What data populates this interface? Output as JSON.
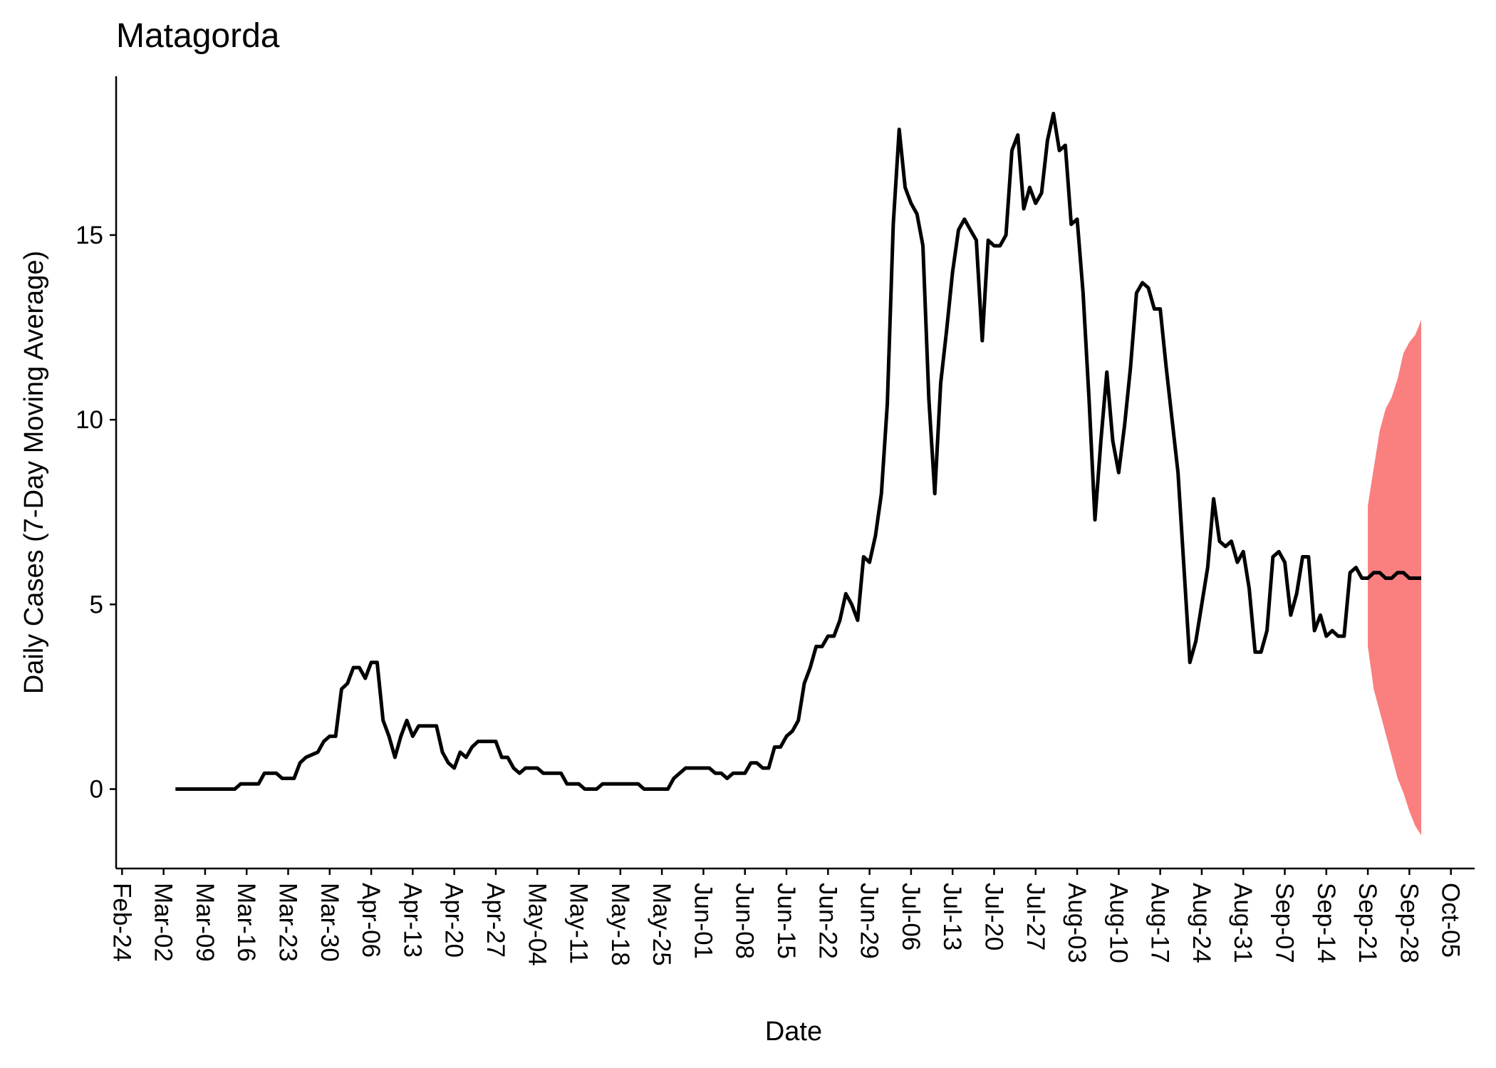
{
  "chart_data": {
    "type": "line",
    "title": "Matagorda",
    "x_label": "Date",
    "y_label": "Daily Cases (7-Day Moving Average)",
    "xlim": [
      "Feb-23",
      "Oct-09"
    ],
    "xticks": [
      "Feb-24",
      "Mar-02",
      "Mar-09",
      "Mar-16",
      "Mar-23",
      "Mar-30",
      "Apr-06",
      "Apr-13",
      "Apr-20",
      "Apr-27",
      "May-04",
      "May-11",
      "May-18",
      "May-25",
      "Jun-01",
      "Jun-08",
      "Jun-15",
      "Jun-22",
      "Jun-29",
      "Jul-06",
      "Jul-13",
      "Jul-20",
      "Jul-27",
      "Aug-03",
      "Aug-10",
      "Aug-17",
      "Aug-24",
      "Aug-31",
      "Sep-07",
      "Sep-14",
      "Sep-21",
      "Sep-28",
      "Oct-05"
    ],
    "ylim": [
      -2.15,
      19.3
    ],
    "yticks": [
      0,
      5,
      10,
      15
    ],
    "color": "#000000",
    "x": [
      "Mar-04",
      "Mar-14",
      "Mar-15",
      "Mar-18",
      "Mar-19",
      "Mar-21",
      "Mar-22",
      "Mar-24",
      "Mar-25",
      "Mar-26",
      "Mar-28",
      "Mar-29",
      "Mar-30",
      "Mar-31",
      "Apr-01",
      "Apr-02",
      "Apr-03",
      "Apr-04",
      "Apr-05",
      "Apr-06",
      "Apr-07",
      "Apr-08",
      "Apr-09",
      "Apr-10",
      "Apr-11",
      "Apr-12",
      "Apr-13",
      "Apr-14",
      "Apr-17",
      "Apr-18",
      "Apr-19",
      "Apr-20",
      "Apr-21",
      "Apr-22",
      "Apr-23",
      "Apr-24",
      "Apr-27",
      "Apr-28",
      "Apr-29",
      "Apr-30",
      "May-01",
      "May-02",
      "May-04",
      "May-05",
      "May-08",
      "May-09",
      "May-11",
      "May-12",
      "May-14",
      "May-15",
      "May-21",
      "May-22",
      "May-26",
      "May-27",
      "May-29",
      "Jun-02",
      "Jun-03",
      "Jun-04",
      "Jun-05",
      "Jun-06",
      "Jun-07",
      "Jun-08",
      "Jun-09",
      "Jun-10",
      "Jun-11",
      "Jun-12",
      "Jun-13",
      "Jun-14",
      "Jun-15",
      "Jun-16",
      "Jun-17",
      "Jun-18",
      "Jun-19",
      "Jun-20",
      "Jun-21",
      "Jun-22",
      "Jun-23",
      "Jun-24",
      "Jun-25",
      "Jun-26",
      "Jun-27",
      "Jun-28",
      "Jun-29",
      "Jun-30",
      "Jul-01",
      "Jul-02",
      "Jul-03",
      "Jul-04",
      "Jul-05",
      "Jul-06",
      "Jul-07",
      "Jul-08",
      "Jul-09",
      "Jul-10",
      "Jul-11",
      "Jul-12",
      "Jul-13",
      "Jul-14",
      "Jul-15",
      "Jul-16",
      "Jul-17",
      "Jul-18",
      "Jul-19",
      "Jul-20",
      "Jul-21",
      "Jul-22",
      "Jul-23",
      "Jul-24",
      "Jul-25",
      "Jul-26",
      "Jul-27",
      "Jul-28",
      "Jul-29",
      "Jul-30",
      "Jul-31",
      "Aug-01",
      "Aug-02",
      "Aug-03",
      "Aug-04",
      "Aug-05",
      "Aug-06",
      "Aug-07",
      "Aug-08",
      "Aug-09",
      "Aug-10",
      "Aug-11",
      "Aug-12",
      "Aug-13",
      "Aug-14",
      "Aug-15",
      "Aug-16",
      "Aug-17",
      "Aug-18",
      "Aug-19",
      "Aug-20",
      "Aug-21",
      "Aug-22",
      "Aug-23",
      "Aug-24",
      "Aug-25",
      "Aug-26",
      "Aug-27",
      "Aug-28",
      "Aug-29",
      "Aug-30",
      "Aug-31",
      "Sep-01",
      "Sep-02",
      "Sep-03",
      "Sep-04",
      "Sep-05",
      "Sep-06",
      "Sep-07",
      "Sep-08",
      "Sep-09",
      "Sep-10",
      "Sep-11",
      "Sep-12",
      "Sep-13",
      "Sep-14",
      "Sep-15",
      "Sep-16",
      "Sep-17",
      "Sep-18",
      "Sep-19",
      "Sep-20",
      "Sep-21",
      "Sep-22",
      "Sep-23",
      "Sep-24",
      "Sep-25",
      "Sep-26",
      "Sep-27",
      "Sep-28",
      "Sep-29",
      "Sep-30"
    ],
    "values": [
      0,
      0,
      0.14,
      0.14,
      0.43,
      0.43,
      0.29,
      0.29,
      0.71,
      0.86,
      1.0,
      1.29,
      1.43,
      1.43,
      2.71,
      2.86,
      3.29,
      3.29,
      3.0,
      3.43,
      3.43,
      1.86,
      1.43,
      0.86,
      1.43,
      1.86,
      1.43,
      1.71,
      1.71,
      1.0,
      0.71,
      0.57,
      1.0,
      0.86,
      1.14,
      1.29,
      1.29,
      0.86,
      0.86,
      0.57,
      0.43,
      0.57,
      0.57,
      0.43,
      0.43,
      0.14,
      0.14,
      0,
      0,
      0.14,
      0.14,
      0,
      0,
      0.29,
      0.57,
      0.57,
      0.43,
      0.43,
      0.29,
      0.43,
      0.43,
      0.43,
      0.71,
      0.71,
      0.57,
      0.57,
      1.14,
      1.14,
      1.43,
      1.57,
      1.86,
      2.86,
      3.29,
      3.86,
      3.86,
      4.14,
      4.14,
      4.57,
      5.29,
      5.0,
      4.57,
      6.29,
      6.14,
      6.86,
      8.0,
      10.43,
      15.29,
      17.86,
      16.29,
      15.86,
      15.57,
      14.71,
      10.57,
      8.0,
      11.0,
      12.43,
      14.0,
      15.14,
      15.43,
      15.14,
      14.86,
      12.14,
      14.86,
      14.71,
      14.71,
      15.0,
      17.29,
      17.71,
      15.71,
      16.29,
      15.86,
      16.14,
      17.57,
      18.29,
      17.29,
      17.43,
      15.29,
      15.43,
      13.43,
      10.57,
      7.29,
      9.43,
      11.29,
      9.43,
      8.57,
      9.86,
      11.43,
      13.43,
      13.71,
      13.57,
      13.0,
      13.0,
      11.43,
      10.0,
      8.57,
      6.0,
      3.43,
      4.0,
      5.0,
      6.0,
      7.86,
      6.71,
      6.57,
      6.71,
      6.14,
      6.43,
      5.43,
      3.71,
      3.71,
      4.29,
      6.29,
      6.43,
      6.14,
      4.71,
      5.29,
      6.29,
      6.29,
      4.29,
      4.71,
      4.14,
      4.29,
      4.14,
      4.14,
      5.86,
      6.0,
      5.71,
      5.71,
      5.86,
      5.86,
      5.71,
      5.71,
      5.86,
      5.86,
      5.71,
      5.71,
      5.71
    ],
    "band": {
      "color": "#fa7f7f",
      "x": [
        "Sep-21",
        "Sep-22",
        "Sep-23",
        "Sep-24",
        "Sep-25",
        "Sep-26",
        "Sep-27",
        "Sep-28",
        "Sep-29",
        "Sep-30"
      ],
      "lower": [
        3.86,
        2.7,
        2.1,
        1.5,
        0.9,
        0.3,
        -0.1,
        -0.6,
        -1.0,
        -1.25
      ],
      "upper": [
        7.67,
        8.7,
        9.7,
        10.3,
        10.6,
        11.1,
        11.8,
        12.1,
        12.3,
        12.7
      ]
    }
  }
}
